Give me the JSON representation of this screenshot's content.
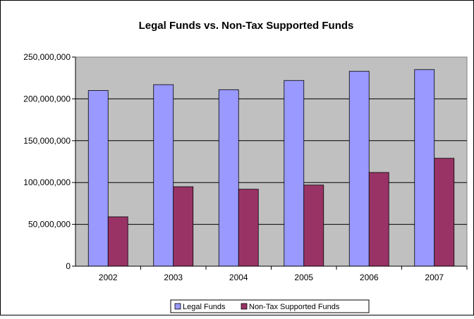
{
  "chart_data": {
    "type": "bar",
    "title": "Legal Funds vs. Non-Tax Supported Funds",
    "xlabel": "",
    "ylabel": "",
    "categories": [
      "2002",
      "2003",
      "2004",
      "2005",
      "2006",
      "2007"
    ],
    "series": [
      {
        "name": "Legal Funds",
        "color": "#9999ff",
        "values": [
          210000000,
          217000000,
          211000000,
          222000000,
          233000000,
          235000000
        ]
      },
      {
        "name": "Non-Tax Supported Funds",
        "color": "#993366",
        "values": [
          59000000,
          95000000,
          92000000,
          97000000,
          112000000,
          129000000
        ]
      }
    ],
    "ylim": [
      0,
      250000000
    ],
    "yticks": [
      "0",
      "50,000,000",
      "100,000,000",
      "150,000,000",
      "200,000,000",
      "250,000,000"
    ],
    "yticks_values": [
      0,
      50000000,
      100000000,
      150000000,
      200000000,
      250000000
    ],
    "grid": true,
    "plot_background": "#c0c0c0",
    "legend_position": "bottom"
  }
}
